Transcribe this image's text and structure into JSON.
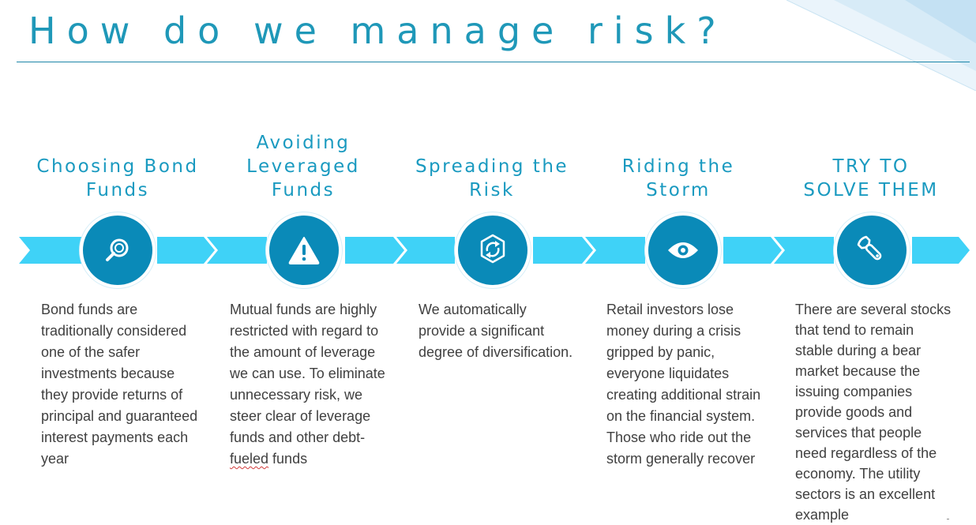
{
  "slide": {
    "title": "How do we manage risk?",
    "colors": {
      "accent": "#1a9ac0",
      "circle": "#0a8ab8",
      "band": "#3fd2f7",
      "body_text": "#404040"
    }
  },
  "columns": [
    {
      "title_lines": [
        "Choosing Bond",
        "Funds"
      ],
      "icon": "magnifier-icon",
      "body": "Bond funds are traditionally considered one of the safer investments because they provide returns of principal  and guaranteed interest payments each year"
    },
    {
      "title_lines": [
        "Avoiding",
        "Leveraged",
        "Funds"
      ],
      "icon": "warning-icon",
      "body_before": "Mutual funds are highly restricted with regard to the amount of leverage we can use. To eliminate unnecessary risk, we steer clear of leverage funds and other debt-",
      "body_flagged_word": "fueled",
      "body_after": " funds"
    },
    {
      "title_lines": [
        "Spreading the",
        "Risk"
      ],
      "icon": "cycle-arrows-icon",
      "body": "We automatically provide a significant degree of diversification."
    },
    {
      "title_lines": [
        "Riding the",
        "Storm"
      ],
      "icon": "eye-icon",
      "body": "Retail investors lose money during a crisis gripped by panic, everyone liquidates creating additional strain on the financial system. Those who ride out the storm generally recover"
    },
    {
      "title_lines": [
        "TRY TO",
        "SOLVE THEM"
      ],
      "icon": "wrench-icon",
      "body": "There are several stocks that tend to remain stable during a bear market because the issuing companies provide goods and services that people need regardless of the economy. The utility sectors is an excellent example"
    }
  ]
}
